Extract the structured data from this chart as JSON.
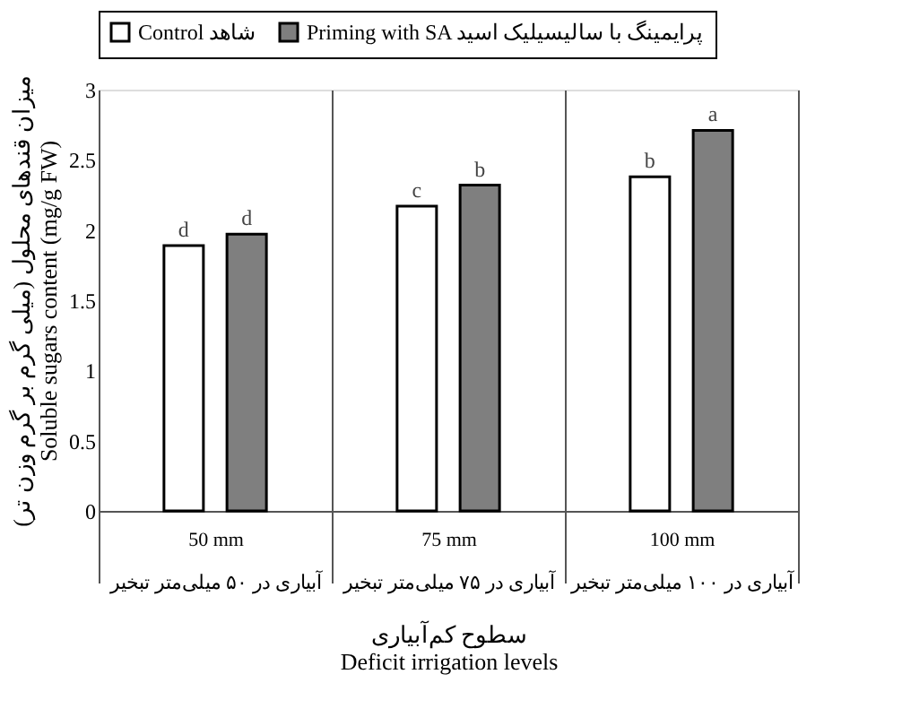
{
  "chart_data": {
    "type": "bar",
    "xlabel": "سطوح کم‌آبیاری\nDeficit irrigation levels",
    "ylabel": "میزان قندهای محلول (میلی گرم بر گرم وزن تر)\nSoluble sugars content (mg/g FW)",
    "categories": [
      "50 mm\nآبیاری در ۵۰ میلی‌متر تبخیر",
      "75 mm\nآبیاری در ۷۵ میلی‌متر تبخیر",
      "100 mm\nآبیاری در ۱۰۰ میلی‌متر تبخیر"
    ],
    "series": [
      {
        "name": "Control شاهد",
        "color": "#ffffff",
        "values": [
          1.89,
          2.17,
          2.38
        ]
      },
      {
        "name": "Priming with SA پرایمینگ با سالیسیلیک اسید",
        "color": "#7f7f7f",
        "values": [
          1.97,
          2.32,
          2.71
        ]
      }
    ],
    "annotations": [
      "d",
      "d",
      "c",
      "b",
      "b",
      "a"
    ],
    "ylim": [
      0,
      3
    ],
    "yticks": [
      0,
      0.5,
      1,
      1.5,
      2,
      2.5,
      3
    ],
    "grid": false,
    "legend": "top"
  }
}
